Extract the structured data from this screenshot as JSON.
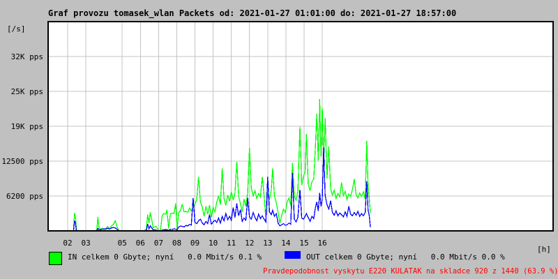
{
  "title": "Graf provozu tomasek_wlan Packets od: 2021-01-27 01:01:00 do: 2021-01-27 18:57:00",
  "y_axis": {
    "unit_label": "[/s]",
    "ticks": [
      {
        "label": "32K pps",
        "value": 31250
      },
      {
        "label": "25K pps",
        "value": 25000
      },
      {
        "label": "19K pps",
        "value": 18750
      },
      {
        "label": "12500 pps",
        "value": 12500
      },
      {
        "label": "6200 pps",
        "value": 6250
      }
    ]
  },
  "x_axis": {
    "unit_label": "[h]",
    "ticks": [
      {
        "label": "02",
        "hour": 2
      },
      {
        "label": "03",
        "hour": 3
      },
      {
        "label": "05",
        "hour": 5
      },
      {
        "label": "06",
        "hour": 6
      },
      {
        "label": "07",
        "hour": 7
      },
      {
        "label": "08",
        "hour": 8
      },
      {
        "label": "09",
        "hour": 9
      },
      {
        "label": "10",
        "hour": 10
      },
      {
        "label": "11",
        "hour": 11
      },
      {
        "label": "12",
        "hour": 12
      },
      {
        "label": "13",
        "hour": 13
      },
      {
        "label": "14",
        "hour": 14
      },
      {
        "label": "15",
        "hour": 15
      },
      {
        "label": "16",
        "hour": 16
      }
    ]
  },
  "legend": {
    "in_label": "IN celkem 0 Gbyte; nyní   0.0 Mbit/s 0.1 %",
    "out_label": "OUT celkem 0 Gbyte; nyní   0.0 Mbit/s 0.0 %"
  },
  "status_text": "Pravdepodobnost vyskytu E220 KULATAK na skladce 920 z 1440 (63.9 %)",
  "colors": {
    "background": "#c0c0c0",
    "plot_background": "#ffffff",
    "grid": "#c3c3c3",
    "border": "#000000",
    "in_series": "#00ff00",
    "out_series": "#0000ff",
    "status_text": "#ff0000"
  },
  "chart_data": {
    "type": "line",
    "xlabel": "[h] (hours of 2021-01-27)",
    "ylabel": "packets per second [/s]",
    "xlim": [
      0.925,
      28.695
    ],
    "ylim": [
      0,
      37500
    ],
    "x_gridline_hours": [
      2,
      3,
      5,
      6,
      7,
      8,
      9,
      10,
      11,
      12,
      13,
      14,
      15,
      16
    ],
    "y_gridline_values": [
      31250,
      25000,
      18750,
      12500,
      6250
    ],
    "legend_position": "bottom",
    "series_names": [
      "IN",
      "OUT"
    ],
    "points_format": [
      "hour",
      "in_pps",
      "out_pps"
    ],
    "points": [
      [
        1.0,
        0,
        0
      ],
      [
        1.3,
        0,
        0
      ],
      [
        1.6,
        15,
        0
      ],
      [
        1.9,
        0,
        0
      ],
      [
        2.1,
        0,
        0
      ],
      [
        2.25,
        0,
        0
      ],
      [
        2.32,
        60,
        20
      ],
      [
        2.38,
        3200,
        1800
      ],
      [
        2.43,
        2500,
        1400
      ],
      [
        2.48,
        120,
        40
      ],
      [
        2.6,
        0,
        0
      ],
      [
        2.8,
        0,
        0
      ],
      [
        3.0,
        0,
        0
      ],
      [
        3.2,
        0,
        0
      ],
      [
        3.45,
        0,
        0
      ],
      [
        3.6,
        80,
        20
      ],
      [
        3.66,
        2500,
        420
      ],
      [
        3.72,
        550,
        180
      ],
      [
        3.8,
        280,
        230
      ],
      [
        3.9,
        480,
        300
      ],
      [
        4.0,
        230,
        380
      ],
      [
        4.1,
        420,
        300
      ],
      [
        4.2,
        780,
        480
      ],
      [
        4.3,
        380,
        330
      ],
      [
        4.42,
        900,
        520
      ],
      [
        4.52,
        1150,
        600
      ],
      [
        4.62,
        1800,
        520
      ],
      [
        4.72,
        650,
        280
      ],
      [
        4.82,
        90,
        30
      ],
      [
        5.0,
        0,
        0
      ],
      [
        5.25,
        0,
        0
      ],
      [
        5.5,
        0,
        0
      ],
      [
        5.75,
        0,
        0
      ],
      [
        6.0,
        0,
        0
      ],
      [
        6.2,
        0,
        0
      ],
      [
        6.33,
        350,
        90
      ],
      [
        6.4,
        2900,
        1250
      ],
      [
        6.47,
        1400,
        380
      ],
      [
        6.54,
        3300,
        900
      ],
      [
        6.62,
        2100,
        550
      ],
      [
        6.7,
        550,
        180
      ],
      [
        6.85,
        820,
        140
      ],
      [
        7.0,
        90,
        0
      ],
      [
        7.1,
        40,
        0
      ],
      [
        7.2,
        2800,
        140
      ],
      [
        7.3,
        3100,
        190
      ],
      [
        7.4,
        3000,
        240
      ],
      [
        7.46,
        3800,
        200
      ],
      [
        7.55,
        450,
        90
      ],
      [
        7.65,
        3050,
        280
      ],
      [
        7.75,
        3200,
        240
      ],
      [
        7.85,
        3100,
        380
      ],
      [
        7.94,
        4900,
        300
      ],
      [
        8.02,
        380,
        190
      ],
      [
        8.1,
        3300,
        680
      ],
      [
        8.2,
        3600,
        880
      ],
      [
        8.3,
        4800,
        800
      ],
      [
        8.4,
        3400,
        700
      ],
      [
        8.5,
        3500,
        980
      ],
      [
        8.6,
        3300,
        880
      ],
      [
        8.7,
        4100,
        1150
      ],
      [
        8.8,
        3600,
        1050
      ],
      [
        8.9,
        4200,
        5900
      ],
      [
        9.0,
        4800,
        1500
      ],
      [
        9.1,
        5600,
        1300
      ],
      [
        9.2,
        9700,
        1800
      ],
      [
        9.3,
        5200,
        2100
      ],
      [
        9.4,
        4300,
        1400
      ],
      [
        9.5,
        2600,
        1100
      ],
      [
        9.6,
        4400,
        1700
      ],
      [
        9.7,
        3000,
        1300
      ],
      [
        9.8,
        4600,
        2900
      ],
      [
        9.9,
        2400,
        1200
      ],
      [
        10.0,
        4200,
        1600
      ],
      [
        10.1,
        3400,
        1900
      ],
      [
        10.2,
        5200,
        1500
      ],
      [
        10.3,
        6300,
        2300
      ],
      [
        10.4,
        4700,
        1400
      ],
      [
        10.5,
        11200,
        2600
      ],
      [
        10.6,
        5800,
        1800
      ],
      [
        10.7,
        4600,
        3100
      ],
      [
        10.8,
        6400,
        2000
      ],
      [
        10.9,
        5300,
        2600
      ],
      [
        11.0,
        7000,
        1900
      ],
      [
        11.1,
        5500,
        4200
      ],
      [
        11.2,
        6800,
        2400
      ],
      [
        11.3,
        12400,
        4900
      ],
      [
        11.4,
        6200,
        2700
      ],
      [
        11.5,
        4900,
        3800
      ],
      [
        11.6,
        3400,
        1700
      ],
      [
        11.7,
        5700,
        2300
      ],
      [
        11.8,
        4400,
        1900
      ],
      [
        11.9,
        6800,
        5900
      ],
      [
        12.0,
        14900,
        2500
      ],
      [
        12.1,
        7600,
        2100
      ],
      [
        12.2,
        6300,
        3300
      ],
      [
        12.3,
        7200,
        2400
      ],
      [
        12.4,
        5800,
        1800
      ],
      [
        12.5,
        6700,
        3000
      ],
      [
        12.6,
        6100,
        2200
      ],
      [
        12.7,
        9700,
        2700
      ],
      [
        12.8,
        6400,
        2100
      ],
      [
        12.9,
        2100,
        1600
      ],
      [
        13.0,
        6800,
        9700
      ],
      [
        13.1,
        5600,
        3400
      ],
      [
        13.2,
        7400,
        2900
      ],
      [
        13.27,
        11200,
        3700
      ],
      [
        13.37,
        6200,
        2600
      ],
      [
        13.47,
        5100,
        3100
      ],
      [
        13.57,
        3300,
        1400
      ],
      [
        13.67,
        1400,
        900
      ],
      [
        13.77,
        2800,
        1100
      ],
      [
        13.87,
        3900,
        1300
      ],
      [
        13.97,
        3300,
        1000
      ],
      [
        14.07,
        5200,
        1100
      ],
      [
        14.17,
        5900,
        1400
      ],
      [
        14.27,
        4600,
        1200
      ],
      [
        14.36,
        12200,
        10400
      ],
      [
        14.46,
        6400,
        2100
      ],
      [
        14.56,
        5400,
        1600
      ],
      [
        14.66,
        7100,
        2400
      ],
      [
        14.77,
        18700,
        7400
      ],
      [
        14.87,
        8200,
        2300
      ],
      [
        14.97,
        9800,
        2100
      ],
      [
        15.06,
        10600,
        2600
      ],
      [
        15.13,
        17400,
        3100
      ],
      [
        15.23,
        8400,
        2400
      ],
      [
        15.33,
        7200,
        1700
      ],
      [
        15.43,
        8800,
        2600
      ],
      [
        15.53,
        9300,
        2200
      ],
      [
        15.62,
        14800,
        4100
      ],
      [
        15.7,
        21000,
        5200
      ],
      [
        15.78,
        12600,
        3600
      ],
      [
        15.86,
        23600,
        6800
      ],
      [
        15.93,
        13400,
        4400
      ],
      [
        16.0,
        22100,
        5700
      ],
      [
        16.08,
        12000,
        14900
      ],
      [
        16.16,
        20200,
        6300
      ],
      [
        16.26,
        9400,
        4700
      ],
      [
        16.36,
        15100,
        3900
      ],
      [
        16.46,
        7600,
        5400
      ],
      [
        16.56,
        6400,
        3300
      ],
      [
        16.66,
        7300,
        2800
      ],
      [
        16.76,
        5800,
        3600
      ],
      [
        16.86,
        6700,
        2700
      ],
      [
        16.96,
        6100,
        3200
      ],
      [
        17.06,
        8700,
        2900
      ],
      [
        17.16,
        6300,
        2500
      ],
      [
        17.26,
        7100,
        3400
      ],
      [
        17.36,
        5600,
        2600
      ],
      [
        17.46,
        6600,
        4400
      ],
      [
        17.56,
        6200,
        3000
      ],
      [
        17.66,
        7400,
        2700
      ],
      [
        17.76,
        9300,
        3300
      ],
      [
        17.86,
        6500,
        2800
      ],
      [
        17.96,
        5900,
        3500
      ],
      [
        18.06,
        6800,
        2600
      ],
      [
        18.16,
        6200,
        3100
      ],
      [
        18.26,
        7000,
        2700
      ],
      [
        18.36,
        5700,
        3300
      ],
      [
        18.45,
        16100,
        8900
      ],
      [
        18.52,
        8200,
        3700
      ],
      [
        18.58,
        6100,
        2800
      ],
      [
        18.65,
        3100,
        600
      ]
    ]
  }
}
